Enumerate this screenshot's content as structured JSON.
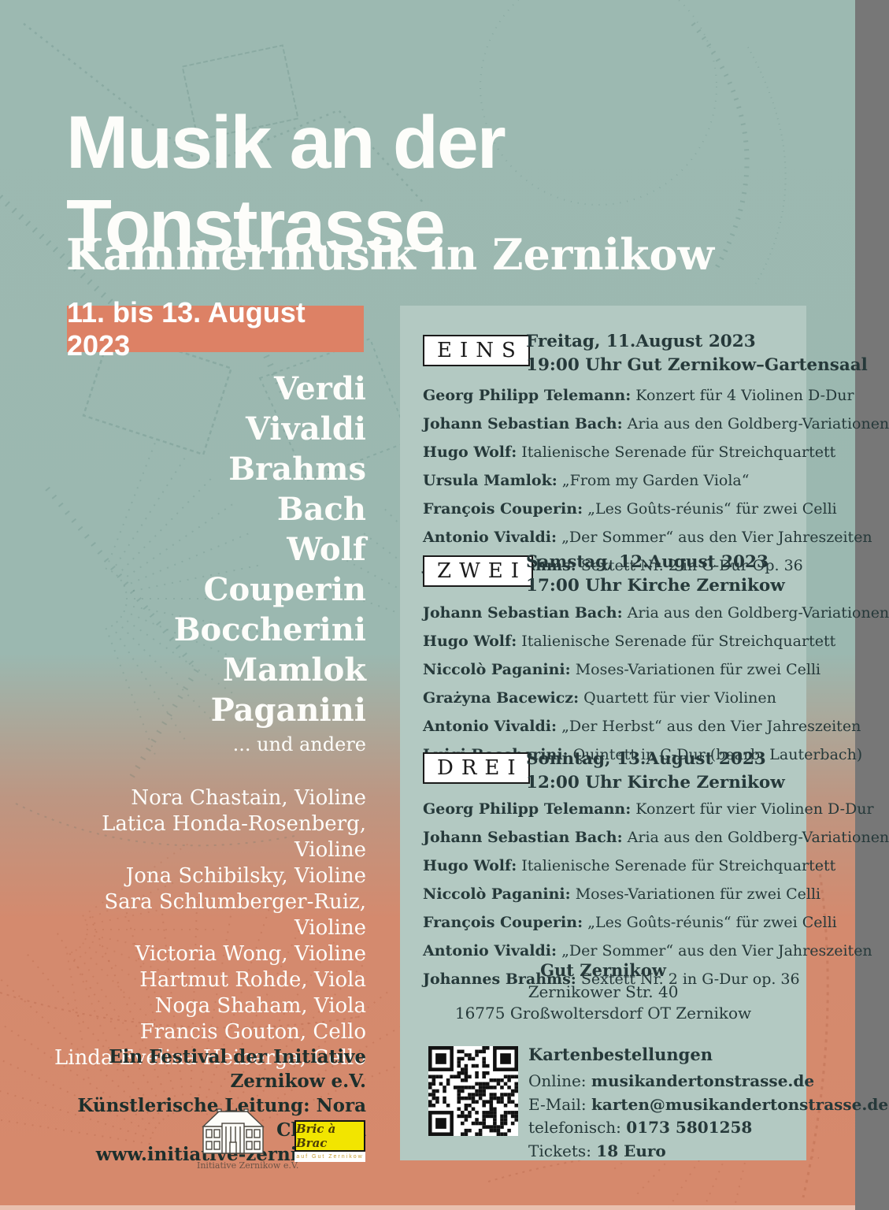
{
  "poster": {
    "title_line1": "Musik an der",
    "title_line2": "Tonstrasse",
    "subtitle": "Kammermusik in Zernikow",
    "date_range": "11. bis 13. August 2023"
  },
  "left": {
    "composers": [
      "Verdi",
      "Vivaldi",
      "Brahms",
      "Bach",
      "Wolf",
      "Couperin",
      "Boccherini",
      "Mamlok",
      "Paganini"
    ],
    "composers_more": "... und andere",
    "performers": [
      {
        "name": "Nora Chastain",
        "instrument": "Violine"
      },
      {
        "name": "Latica Honda-Rosenberg",
        "instrument": "Violine"
      },
      {
        "name": "Jona Schibilsky",
        "instrument": "Violine"
      },
      {
        "name": "Sara Schlumberger-Ruiz",
        "instrument": "Violine"
      },
      {
        "name": "Victoria Wong",
        "instrument": "Violine"
      },
      {
        "name": "Hartmut Rohde",
        "instrument": "Viola"
      },
      {
        "name": "Noga Shaham",
        "instrument": "Viola"
      },
      {
        "name": "Francis Gouton",
        "instrument": "Cello"
      },
      {
        "name": "Linda Evelina Heiberga",
        "instrument": "Cello"
      }
    ],
    "footer_lines": [
      "Ein Festival der Initiative Zernikow e.V.",
      "Künstlerische Leitung: Nora Chastain",
      "www.initiative-zernikow.de"
    ],
    "logo_initiative_caption": "Initiative Zernikow e.V.",
    "logo_bric_text": "Bric à Brac",
    "logo_bric_caption": "auf Gut Zernikow"
  },
  "concerts": [
    {
      "label": "EINS",
      "date": "Freitag, 11.August 2023",
      "venue": "19:00 Uhr Gut Zernikow–Gartensaal",
      "program": [
        {
          "composer": "Georg Philipp Telemann:",
          "work": "Konzert für 4 Violinen D-Dur"
        },
        {
          "composer": "Johann Sebastian Bach:",
          "work": "Aria aus den Goldberg-Variationen"
        },
        {
          "composer": "Hugo Wolf:",
          "work": "Italienische Serenade für Streichquartett"
        },
        {
          "composer": "Ursula Mamlok:",
          "work": "„From my Garden Viola“"
        },
        {
          "composer": "François Couperin:",
          "work": "„Les Goûts-réunis“ für zwei Celli"
        },
        {
          "composer": "Antonio Vivaldi:",
          "work": "„Der Sommer“ aus den Vier Jahreszeiten"
        },
        {
          "composer": "Johannes Brahms:",
          "work": "Sextett Nr. 2 in G-Dur Op. 36"
        }
      ]
    },
    {
      "label": "ZWEI",
      "date": "Samstag, 12.August 2023",
      "venue": "17:00 Uhr Kirche Zernikow",
      "program": [
        {
          "composer": "Johann Sebastian Bach:",
          "work": "Aria aus den Goldberg-Variationen"
        },
        {
          "composer": "Hugo Wolf:",
          "work": "Italienische Serenade für Streichquartett"
        },
        {
          "composer": "Niccolò Paganini:",
          "work": "Moses-Variationen für zwei Celli"
        },
        {
          "composer": "Grażyna Bacewicz:",
          "work": "Quartett für vier Violinen"
        },
        {
          "composer": "Antonio Vivaldi:",
          "work": "„Der Herbst“ aus den Vier Jahreszeiten"
        },
        {
          "composer": "Luigi Boccherini:",
          "work": "Quintett in C-Dur (bearb. Lauterbach)"
        }
      ]
    },
    {
      "label": "DREI",
      "date": "Sonntag, 13.August 2023",
      "venue": "12:00 Uhr Kirche Zernikow",
      "program": [
        {
          "composer": "Georg Philipp Telemann:",
          "work": "Konzert für vier Violinen D-Dur"
        },
        {
          "composer": "Johann Sebastian Bach:",
          "work": "Aria aus den Goldberg-Variationen"
        },
        {
          "composer": "Hugo Wolf:",
          "work": "Italienische Serenade für Streichquartett"
        },
        {
          "composer": "Niccolò Paganini:",
          "work": "Moses-Variationen für zwei Celli"
        },
        {
          "composer": "François Couperin:",
          "work": "„Les Goûts-réunis“ für zwei Celli"
        },
        {
          "composer": "Antonio Vivaldi:",
          "work": "„Der Sommer“ aus den Vier Jahreszeiten"
        },
        {
          "composer": "Johannes Brahms:",
          "work": "Sextett Nr. 2 in G-Dur op. 36"
        }
      ]
    }
  ],
  "venue_address": {
    "name": "Gut Zernikow",
    "street": "Zernikower Str. 40",
    "city": "16775 Großwoltersdorf OT Zernikow"
  },
  "tickets": {
    "title": "Kartenbestellungen",
    "lines": [
      {
        "label": "Online:",
        "value": "musikandertonstrasse.de"
      },
      {
        "label": "E-Mail:",
        "value": "karten@musikandertonstrasse.de"
      },
      {
        "label": "telefonisch:",
        "value": "0173 5801258"
      },
      {
        "label": "Tickets:",
        "value": "18 Euro"
      }
    ]
  },
  "icons": {
    "qr_code": "qr-code",
    "house_logo": "manor-house-logo"
  },
  "colors": {
    "teal_background": "#9cb9b1",
    "salmon_background": "#d6896c",
    "panel": "#b3c9c2",
    "accent_box": "#dd8165",
    "ink": "#26393a",
    "bric_yellow": "#f2e500"
  }
}
